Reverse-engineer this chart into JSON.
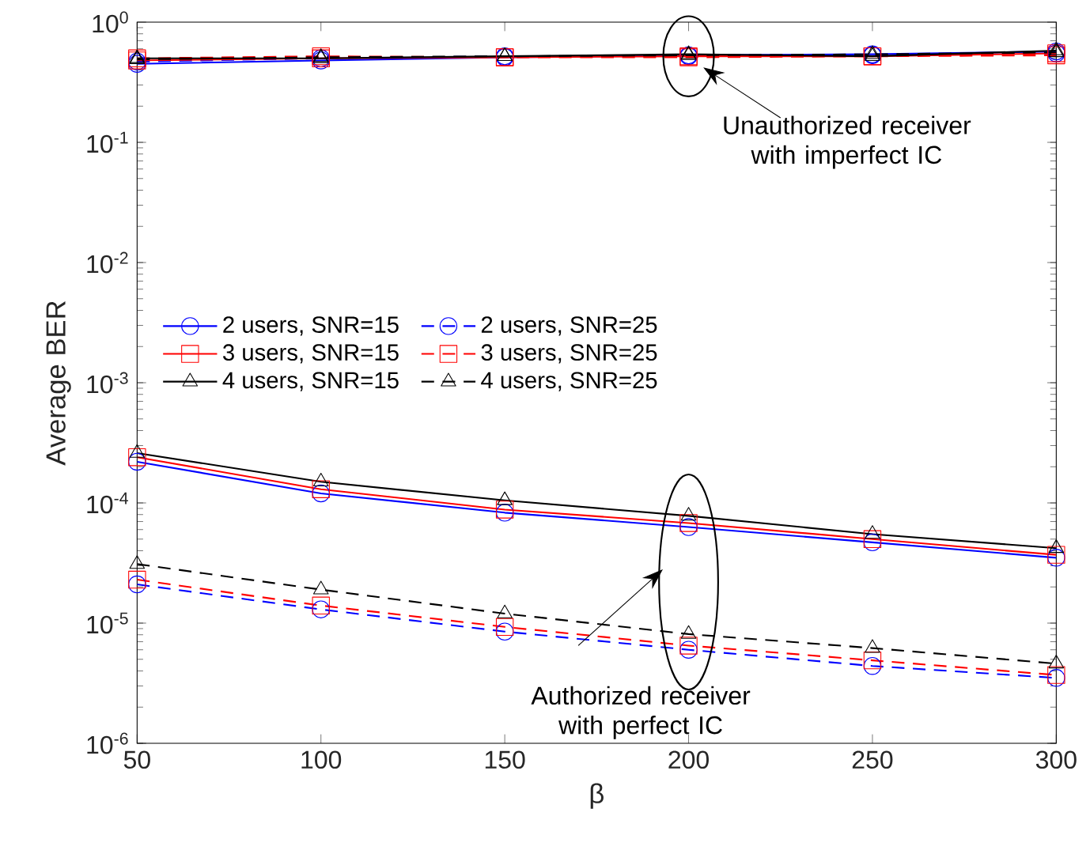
{
  "chart_data": {
    "type": "line",
    "xlabel": "β",
    "ylabel": "Average BER",
    "log": "y",
    "x": [
      50,
      100,
      150,
      200,
      250,
      300
    ],
    "xlim": [
      50,
      300
    ],
    "xticks": [
      50,
      100,
      150,
      200,
      250,
      300
    ],
    "ylim": [
      1e-06,
      1
    ],
    "yticks": [
      {
        "value": 1e-06,
        "label": "10$^{-6}$"
      },
      {
        "value": 1e-05,
        "label": "10$^{-5}$"
      },
      {
        "value": 0.0001,
        "label": "10$^{-4}$"
      },
      {
        "value": 0.001,
        "label": "10$^{-3}$"
      },
      {
        "value": 0.01,
        "label": "10$^{-2}$"
      },
      {
        "value": 0.1,
        "label": "10$^{-1}$"
      },
      {
        "value": 1,
        "label": "10$^{0}$"
      }
    ],
    "legend": "left",
    "grid": false,
    "series": [
      {
        "name": "2 users, SNR=15",
        "color": "#0000ff",
        "marker": "circle",
        "line_style": "solid",
        "values": [
          0.00022,
          0.00012,
          8.3e-05,
          6.3e-05,
          4.7e-05,
          3.5e-05
        ]
      },
      {
        "name": "2 users, SNR=25",
        "color": "#0000ff",
        "marker": "circle",
        "line_style": "dashed",
        "values": [
          2.1e-05,
          1.3e-05,
          8.5e-06,
          6e-06,
          4.4e-06,
          3.5e-06
        ]
      },
      {
        "name": "3 users, SNR=15",
        "color": "#ff0000",
        "marker": "square",
        "line_style": "solid",
        "values": [
          0.00024,
          0.00013,
          8.8e-05,
          6.8e-05,
          5e-05,
          3.7e-05
        ]
      },
      {
        "name": "3 users, SNR=25",
        "color": "#ff0000",
        "marker": "square",
        "line_style": "dashed",
        "values": [
          2.3e-05,
          1.4e-05,
          9.3e-06,
          6.5e-06,
          4.9e-06,
          3.7e-06
        ]
      },
      {
        "name": "4 users, SNR=15",
        "color": "#000000",
        "marker": "triangle",
        "line_style": "solid",
        "values": [
          0.00026,
          0.00015,
          0.000105,
          7.8e-05,
          5.5e-05,
          4.2e-05
        ]
      },
      {
        "name": "4 users, SNR=25",
        "color": "#000000",
        "marker": "triangle",
        "line_style": "dashed",
        "values": [
          3.1e-05,
          1.9e-05,
          1.2e-05,
          8.1e-06,
          6.2e-06,
          4.6e-06
        ]
      },
      {
        "color": "#0000ff",
        "marker": "circle",
        "line_style": "solid",
        "values": [
          0.45,
          0.48,
          0.51,
          0.53,
          0.54,
          0.57
        ]
      },
      {
        "color": "#0000ff",
        "marker": "circle",
        "line_style": "dashed",
        "values": [
          0.47,
          0.5,
          0.52,
          0.52,
          0.53,
          0.55
        ]
      },
      {
        "color": "#ff0000",
        "marker": "square",
        "line_style": "solid",
        "values": [
          0.48,
          0.5,
          0.51,
          0.52,
          0.52,
          0.55
        ]
      },
      {
        "color": "#ff0000",
        "marker": "square",
        "line_style": "dashed",
        "values": [
          0.5,
          0.52,
          0.51,
          0.51,
          0.52,
          0.53
        ]
      },
      {
        "color": "#000000",
        "marker": "triangle",
        "line_style": "solid",
        "values": [
          0.5,
          0.5,
          0.52,
          0.54,
          0.52,
          0.58
        ]
      },
      {
        "color": "#000000",
        "marker": "triangle",
        "line_style": "dashed",
        "values": [
          0.49,
          0.51,
          0.52,
          0.53,
          0.54,
          0.56
        ]
      }
    ],
    "annotations": [
      "Unauthorized receiver with imperfect IC",
      "Authorized receiver with perfect IC"
    ]
  }
}
